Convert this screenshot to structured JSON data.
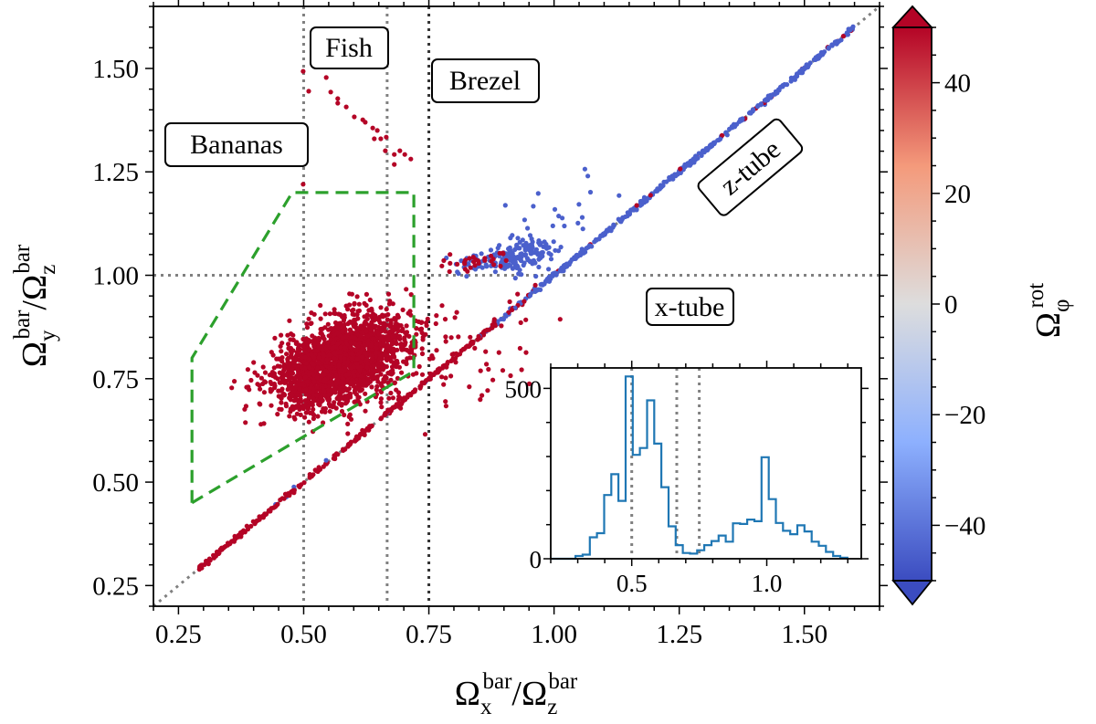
{
  "chart_data": {
    "type": "scatter",
    "xlim": [
      0.2,
      1.65
    ],
    "ylim": [
      0.2,
      1.65
    ],
    "xticks": [
      0.25,
      0.5,
      0.75,
      1.0,
      1.25,
      1.5
    ],
    "xtick_labels": [
      "0.25",
      "0.50",
      "0.75",
      "1.00",
      "1.25",
      "1.50"
    ],
    "yticks": [
      0.25,
      0.5,
      0.75,
      1.0,
      1.25,
      1.5
    ],
    "ytick_labels": [
      "0.25",
      "0.50",
      "0.75",
      "1.00",
      "1.25",
      "1.50"
    ],
    "xlabel": {
      "base": "Ω",
      "sub": "x",
      "sup": "bar",
      "slash": "/",
      "base2": "Ω",
      "sub2": "z",
      "sup2": "bar"
    },
    "ylabel": {
      "base": "Ω",
      "sub": "y",
      "sup": "bar",
      "slash": "/",
      "base2": "Ω",
      "sub2": "z",
      "sup2": "bar"
    },
    "reference_lines": {
      "vertical": [
        0.5,
        0.6667,
        0.75
      ],
      "horizontal": [
        1.0
      ],
      "diagonal": "y = x"
    },
    "region_polygon": {
      "label": "selection",
      "color": "#2ca02c",
      "points": [
        [
          0.277,
          0.45
        ],
        [
          0.277,
          0.8
        ],
        [
          0.477,
          1.2
        ],
        [
          0.72,
          1.2
        ],
        [
          0.72,
          0.768
        ],
        [
          0.277,
          0.45
        ]
      ]
    },
    "annotations": [
      "Fish",
      "Brezel",
      "Bananas",
      "z-tube",
      "x-tube"
    ],
    "colorbar": {
      "label": {
        "base": "Ω",
        "sub": "φ",
        "sup": "rot"
      },
      "range": [
        -50,
        50
      ],
      "ticks": [
        40,
        20,
        0,
        -20,
        -40
      ],
      "tick_labels": [
        "40",
        "20",
        "0",
        "−20",
        "−40"
      ],
      "extend": "both",
      "colormap": "coolwarm",
      "stops": [
        "#3b4cc0",
        "#8db0fe",
        "#dddddd",
        "#f49a7b",
        "#b40426"
      ]
    },
    "scatter_clouds": [
      {
        "name": "bananas-cloud",
        "n": 2200,
        "center": [
          0.575,
          0.79
        ],
        "sd_major": 0.075,
        "sd_minor": 0.045,
        "slope": 0.62,
        "value": 50
      },
      {
        "name": "blue-cluster-main",
        "n": 110,
        "center": [
          0.945,
          1.05
        ],
        "sd_major": 0.028,
        "sd_minor": 0.02,
        "slope": 0.2,
        "value": -45
      },
      {
        "name": "blue-cluster-left",
        "n": 60,
        "center": [
          0.86,
          1.03
        ],
        "sd_major": 0.04,
        "sd_minor": 0.013,
        "slope": 0.0,
        "value": -45
      },
      {
        "name": "red-cluster-left",
        "n": 30,
        "center": [
          0.845,
          1.035
        ],
        "sd_major": 0.035,
        "sd_minor": 0.015,
        "slope": 0.0,
        "value": 50
      },
      {
        "name": "red-scatter-below-diagonal",
        "n": 45,
        "center": [
          0.88,
          0.82
        ],
        "sd_major": 0.09,
        "sd_minor": 0.06,
        "slope": 1.0,
        "value": 50
      },
      {
        "name": "blue-scatter-above-diagonal",
        "n": 25,
        "center": [
          1.0,
          1.12
        ],
        "sd_major": 0.08,
        "sd_minor": 0.04,
        "slope": 1.0,
        "value": -45
      }
    ],
    "diagonal_points": {
      "x_range": [
        0.29,
        1.6
      ],
      "n": 700,
      "red_below": 0.86,
      "blue_above": 0.95,
      "red_value": 50,
      "blue_value": -45
    },
    "fish_points": [
      [
        0.499,
        1.493
      ],
      [
        0.545,
        1.478
      ],
      [
        0.51,
        1.445
      ],
      [
        0.554,
        1.443
      ],
      [
        0.568,
        1.427
      ],
      [
        0.568,
        1.416
      ],
      [
        0.585,
        1.407
      ],
      [
        0.601,
        1.383
      ],
      [
        0.618,
        1.376
      ],
      [
        0.623,
        1.37
      ],
      [
        0.638,
        1.356
      ],
      [
        0.647,
        1.35
      ],
      [
        0.641,
        1.33
      ],
      [
        0.654,
        1.33
      ],
      [
        0.665,
        1.334
      ],
      [
        0.663,
        1.301
      ],
      [
        0.681,
        1.292
      ],
      [
        0.692,
        1.301
      ],
      [
        0.702,
        1.292
      ],
      [
        0.714,
        1.281
      ],
      [
        0.681,
        1.268
      ],
      [
        0.499,
        1.22
      ]
    ],
    "inset_histogram": {
      "type": "histogram",
      "xlim": [
        0.2,
        1.35
      ],
      "ylim": [
        0,
        560
      ],
      "xticks": [
        0.5,
        1.0
      ],
      "xtick_labels": [
        "0.5",
        "1.0"
      ],
      "yticks": [
        0,
        500
      ],
      "ytick_labels": [
        "0",
        "500"
      ],
      "bin_start": 0.2917,
      "bin_width": 0.0265,
      "counts": [
        8,
        12,
        63,
        75,
        187,
        248,
        170,
        535,
        305,
        325,
        465,
        338,
        210,
        95,
        40,
        17,
        15,
        25,
        40,
        52,
        68,
        50,
        104,
        102,
        115,
        110,
        298,
        175,
        105,
        82,
        72,
        98,
        80,
        50,
        38,
        20,
        8,
        3
      ],
      "color": "#1f77b4",
      "reference_lines": [
        0.5,
        0.6667,
        0.75
      ]
    }
  }
}
